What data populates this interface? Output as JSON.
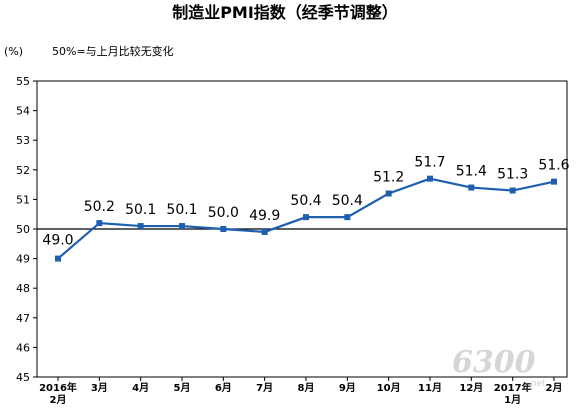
{
  "chart_data": {
    "type": "line",
    "title": "制造业PMI指数（经季节调整）",
    "unit_label": "(%)",
    "reference_note": "50%=与上月比较无变化",
    "reference_value": 50,
    "ylim": [
      45,
      55
    ],
    "yticks": [
      45,
      46,
      47,
      48,
      49,
      50,
      51,
      52,
      53,
      54,
      55
    ],
    "categories": [
      [
        "2016年",
        "2月"
      ],
      [
        "3月"
      ],
      [
        "4月"
      ],
      [
        "5月"
      ],
      [
        "6月"
      ],
      [
        "7月"
      ],
      [
        "8月"
      ],
      [
        "9月"
      ],
      [
        "10月"
      ],
      [
        "11月"
      ],
      [
        "12月"
      ],
      [
        "2017年",
        "1月"
      ],
      [
        "2月"
      ]
    ],
    "values": [
      49.0,
      50.2,
      50.1,
      50.1,
      50.0,
      49.9,
      50.4,
      50.4,
      51.2,
      51.7,
      51.4,
      51.3,
      51.6
    ],
    "data_labels": [
      "49.0",
      "50.2",
      "50.1",
      "50.1",
      "50.0",
      "49.9",
      "50.4",
      "50.4",
      "51.2",
      "51.7",
      "51.4",
      "51.3",
      "51.6"
    ],
    "line_color": "#1f5fb0",
    "grid": false,
    "legend": "none"
  },
  "watermark": {
    "main": "6300",
    "sub": ".net"
  }
}
